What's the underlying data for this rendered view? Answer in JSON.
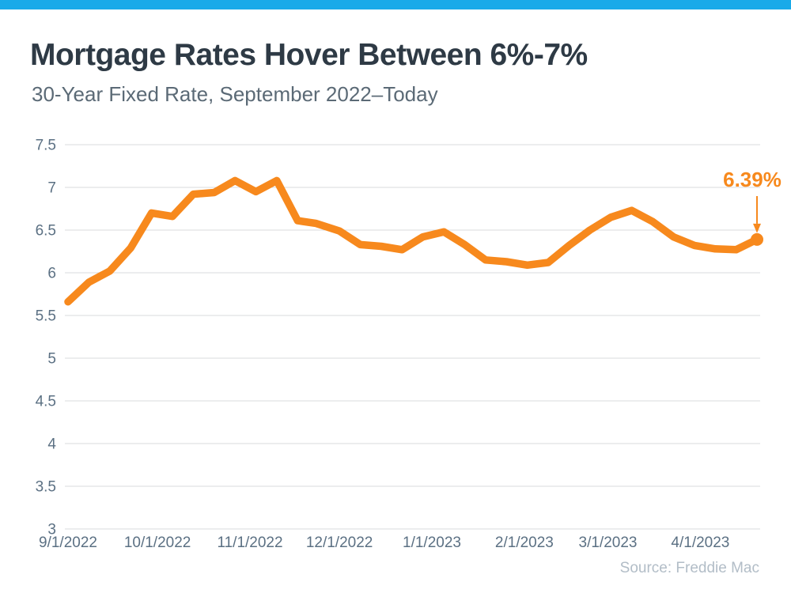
{
  "colors": {
    "accent_bar": "#19aae9",
    "line": "#f7891d",
    "title_text": "#2e3a45",
    "subtitle_text": "#5b6a76",
    "axis_text": "#5b7083",
    "gridline": "#d9dbdd",
    "source_text": "#b2bdc7"
  },
  "header": {
    "title": "Mortgage Rates Hover Between 6%-7%",
    "subtitle": "30-Year Fixed Rate, September 2022–Today"
  },
  "chart_data": {
    "type": "line",
    "title": "Mortgage Rates Hover Between 6%-7%",
    "subtitle": "30-Year Fixed Rate, September 2022–Today",
    "series": [
      {
        "name": "30-Year Fixed Mortgage Rate (%)",
        "x": [
          "9/1/2022",
          "9/8/2022",
          "9/15/2022",
          "9/22/2022",
          "9/29/2022",
          "10/6/2022",
          "10/13/2022",
          "10/20/2022",
          "10/27/2022",
          "11/3/2022",
          "11/10/2022",
          "11/17/2022",
          "11/23/2022",
          "12/1/2022",
          "12/8/2022",
          "12/15/2022",
          "12/22/2022",
          "12/29/2022",
          "1/5/2023",
          "1/12/2023",
          "1/19/2023",
          "1/26/2023",
          "2/2/2023",
          "2/9/2023",
          "2/16/2023",
          "2/23/2023",
          "3/2/2023",
          "3/9/2023",
          "3/16/2023",
          "3/23/2023",
          "3/30/2023",
          "4/6/2023",
          "4/13/2023",
          "4/20/2023"
        ],
        "values": [
          5.66,
          5.89,
          6.02,
          6.29,
          6.7,
          6.66,
          6.92,
          6.94,
          7.08,
          6.95,
          7.08,
          6.61,
          6.58,
          6.49,
          6.33,
          6.31,
          6.27,
          6.42,
          6.48,
          6.33,
          6.15,
          6.13,
          6.09,
          6.12,
          6.32,
          6.5,
          6.65,
          6.73,
          6.6,
          6.42,
          6.32,
          6.28,
          6.27,
          6.39
        ]
      }
    ],
    "xticks": [
      "9/1/2022",
      "10/1/2022",
      "11/1/2022",
      "12/1/2022",
      "1/1/2023",
      "2/1/2023",
      "3/1/2023",
      "4/1/2023"
    ],
    "yticks": [
      7.5,
      7,
      6.5,
      6,
      5.5,
      5,
      4.5,
      4,
      3.5,
      3
    ],
    "ylim": [
      3,
      7.5
    ],
    "grid": "horizontal-only",
    "legend": "none",
    "line_color": "#f7891d",
    "tick_color": "#5b7083",
    "grid_color": "#d9dbdd",
    "annotation": {
      "label": "6.39%",
      "value": 6.39,
      "date": "4/20/2023"
    },
    "source": "Source: Freddie Mac"
  }
}
